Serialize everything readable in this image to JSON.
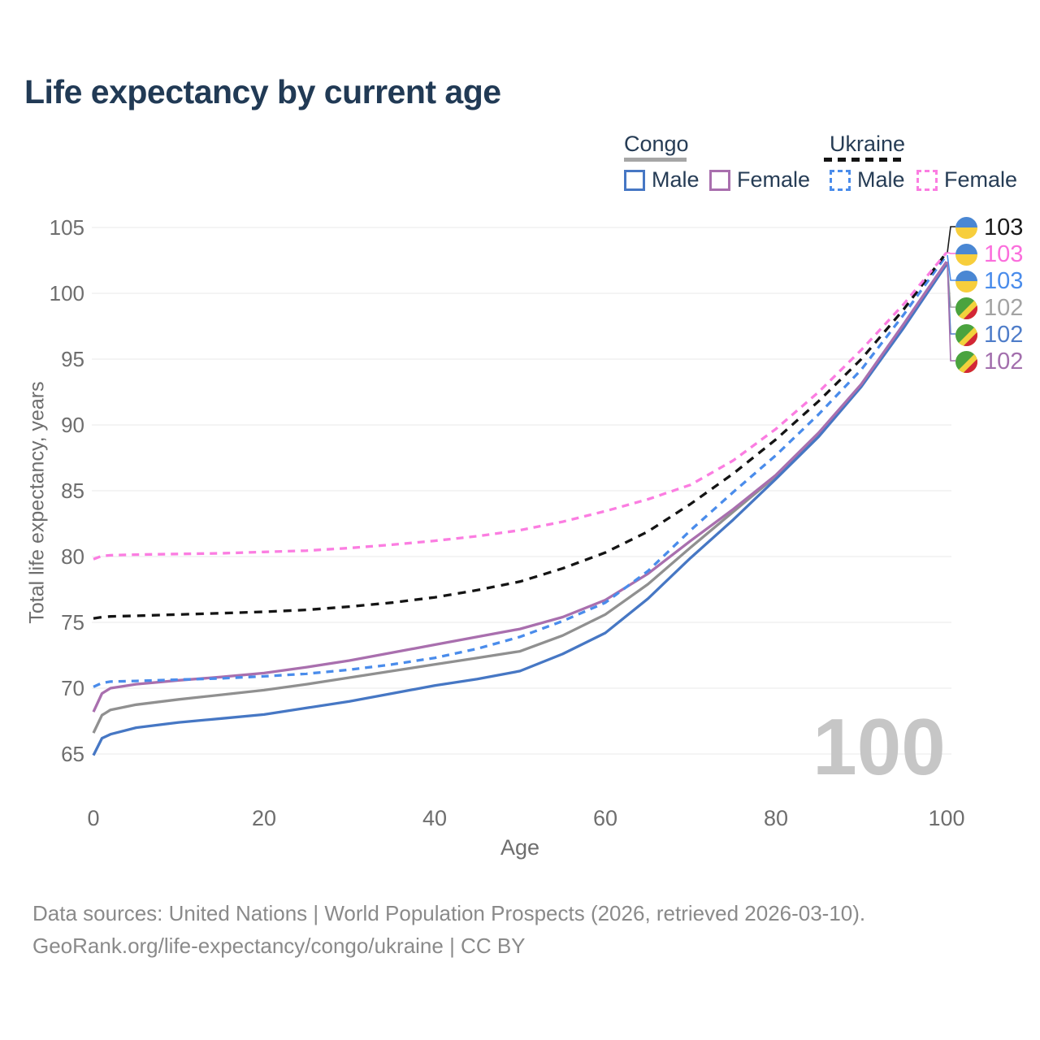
{
  "title": "Life expectancy by current age",
  "legend": {
    "groups": [
      {
        "name": "Congo",
        "style": "solid",
        "underline_color": "#a6a6a6",
        "items": [
          {
            "label": "Male",
            "color": "#4677c4",
            "dash": false
          },
          {
            "label": "Female",
            "color": "#a96fae",
            "dash": false
          }
        ]
      },
      {
        "name": "Ukraine",
        "style": "dashed",
        "underline_color": "#141414",
        "items": [
          {
            "label": "Male",
            "color": "#4a8ceb",
            "dash": true
          },
          {
            "label": "Female",
            "color": "#fb7de1",
            "dash": true
          }
        ]
      }
    ]
  },
  "chart_data": {
    "type": "line",
    "title": "Life expectancy by current age",
    "xlabel": "Age",
    "ylabel": "Total life expectancy, years",
    "xlim": [
      0,
      100
    ],
    "ylim": [
      65,
      105
    ],
    "xticks": [
      0,
      20,
      40,
      60,
      80,
      100
    ],
    "yticks": [
      65,
      70,
      75,
      80,
      85,
      90,
      95,
      100,
      105
    ],
    "grid": "horizontal",
    "legend_position": "top-right",
    "watermark": "100",
    "x": [
      0,
      1,
      2,
      5,
      10,
      15,
      20,
      25,
      30,
      35,
      40,
      45,
      50,
      55,
      60,
      65,
      70,
      75,
      80,
      85,
      90,
      95,
      100
    ],
    "series": [
      {
        "name": "Congo total",
        "country": "Congo",
        "group": "total",
        "color": "#909090",
        "dash": null,
        "values": [
          66.6,
          67.95,
          68.35,
          68.75,
          69.15,
          69.5,
          69.85,
          70.3,
          70.8,
          71.3,
          71.8,
          72.3,
          72.8,
          74.0,
          75.6,
          77.9,
          80.7,
          83.4,
          86.1,
          89.3,
          93.0,
          97.6,
          102.3
        ]
      },
      {
        "name": "Congo male",
        "country": "Congo",
        "group": "male",
        "color": "#4677c4",
        "dash": null,
        "values": [
          64.9,
          66.2,
          66.5,
          67.0,
          67.4,
          67.7,
          68.0,
          68.5,
          69.0,
          69.6,
          70.2,
          70.7,
          71.3,
          72.6,
          74.2,
          76.8,
          79.9,
          82.8,
          85.9,
          89.1,
          92.9,
          97.4,
          102.2
        ]
      },
      {
        "name": "Congo female",
        "country": "Congo",
        "group": "female",
        "color": "#a96fae",
        "dash": null,
        "values": [
          68.2,
          69.6,
          70.0,
          70.3,
          70.6,
          70.85,
          71.15,
          71.6,
          72.1,
          72.7,
          73.3,
          73.9,
          74.5,
          75.4,
          76.7,
          78.7,
          81.2,
          83.6,
          86.2,
          89.4,
          93.1,
          97.7,
          102.4
        ]
      },
      {
        "name": "Ukraine male",
        "country": "Ukraine",
        "group": "male",
        "color": "#4a8ceb",
        "dash": [
          9,
          7
        ],
        "values": [
          70.1,
          70.4,
          70.5,
          70.55,
          70.65,
          70.75,
          70.9,
          71.1,
          71.4,
          71.8,
          72.3,
          73.0,
          73.9,
          75.1,
          76.5,
          78.9,
          82.0,
          84.9,
          87.7,
          90.8,
          94.2,
          98.4,
          102.9
        ]
      },
      {
        "name": "Ukraine total",
        "country": "Ukraine",
        "group": "total",
        "color": "#141414",
        "dash": [
          10,
          8
        ],
        "values": [
          75.3,
          75.4,
          75.45,
          75.5,
          75.6,
          75.7,
          75.8,
          75.95,
          76.2,
          76.5,
          76.9,
          77.45,
          78.1,
          79.1,
          80.3,
          81.9,
          84.0,
          86.3,
          88.9,
          91.8,
          95.0,
          98.8,
          103.1
        ]
      },
      {
        "name": "Ukraine female",
        "country": "Ukraine",
        "group": "female",
        "color": "#fb7de1",
        "dash": [
          9,
          7
        ],
        "values": [
          79.8,
          80.05,
          80.1,
          80.15,
          80.2,
          80.25,
          80.35,
          80.45,
          80.65,
          80.9,
          81.2,
          81.55,
          82.0,
          82.65,
          83.45,
          84.35,
          85.45,
          87.3,
          89.7,
          92.5,
          95.7,
          99.2,
          103.1
        ]
      }
    ],
    "end_labels": [
      {
        "value": "103",
        "flag": "ukraine",
        "color": "#1a1a1a",
        "series": "Ukraine total"
      },
      {
        "value": "103",
        "flag": "ukraine",
        "color": "#fb6edc",
        "series": "Ukraine female"
      },
      {
        "value": "103",
        "flag": "ukraine",
        "color": "#4a8ceb",
        "series": "Ukraine male"
      },
      {
        "value": "102",
        "flag": "congo",
        "color": "#a3a3a3",
        "series": "Congo total"
      },
      {
        "value": "102",
        "flag": "congo",
        "color": "#4f7dc9",
        "series": "Congo male"
      },
      {
        "value": "102",
        "flag": "congo",
        "color": "#a36fad",
        "series": "Congo female"
      }
    ],
    "flags": {
      "ukraine": {
        "blue": "#4a87d3",
        "yellow": "#f7ce3c"
      },
      "congo": {
        "green": "#4aa33e",
        "yellow": "#f2d23c",
        "red": "#d32636"
      }
    },
    "colors": {
      "grid": "#ededed",
      "tick_text": "#6e6e6e",
      "watermark": "#c6c6c6",
      "title_text": "#213a55"
    }
  },
  "footer": {
    "line1": "Data sources: United Nations | World Population Prospects (2026, retrieved 2026-03-10).",
    "line2": "GeoRank.org/life-expectancy/congo/ukraine | CC BY"
  }
}
